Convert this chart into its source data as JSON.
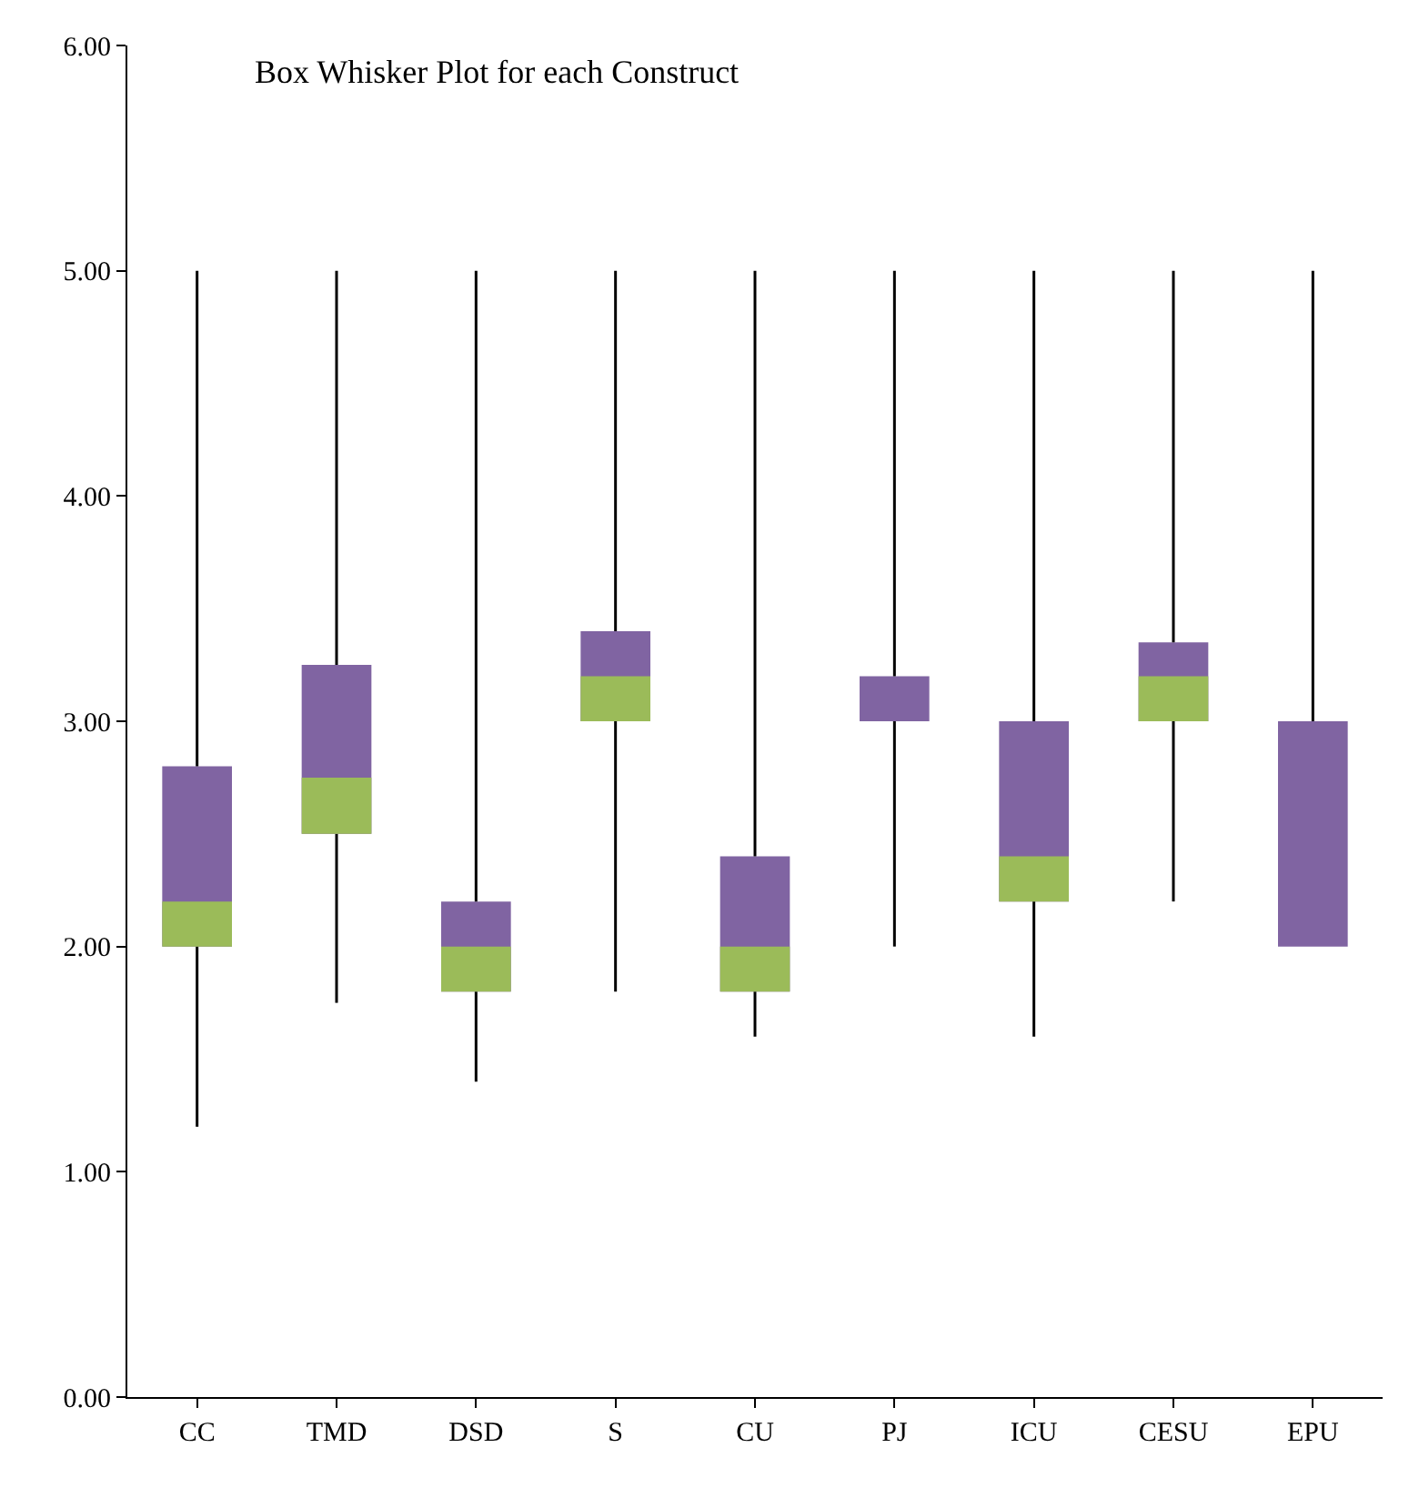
{
  "chart_data": {
    "type": "box",
    "title": "Box Whisker Plot for each Construct",
    "categories": [
      "CC",
      "TMD",
      "DSD",
      "S",
      "CU",
      "PJ",
      "ICU",
      "CESU",
      "EPU"
    ],
    "color": "#9bbb59",
    "series": [
      {
        "color": "#8064a2",
        "boxes": [
          {
            "low": 1.2,
            "q1": 2.0,
            "median": 2.2,
            "q3": 2.8,
            "high": 5.0
          },
          {
            "low": 1.75,
            "q1": 2.5,
            "median": 2.75,
            "q3": 3.25,
            "high": 5.0
          },
          {
            "low": 1.4,
            "q1": 1.8,
            "median": 2.0,
            "q3": 2.2,
            "high": 5.0
          },
          {
            "low": 1.8,
            "q1": 3.0,
            "median": 3.2,
            "q3": 3.4,
            "high": 5.0
          },
          {
            "low": 1.6,
            "q1": 1.8,
            "median": 2.0,
            "q3": 2.4,
            "high": 5.0
          },
          {
            "low": 2.0,
            "q1": 3.0,
            "median": 3.0,
            "q3": 3.2,
            "high": 5.0
          },
          {
            "low": 1.6,
            "q1": 2.2,
            "median": 2.4,
            "q3": 3.0,
            "high": 5.0
          },
          {
            "low": 2.2,
            "q1": 3.0,
            "median": 3.2,
            "q3": 3.35,
            "high": 5.0
          },
          {
            "low": 2.0,
            "q1": 2.0,
            "median": 2.0,
            "q3": 3.0,
            "high": 5.0
          }
        ]
      }
    ],
    "ylim": [
      0,
      6
    ],
    "yticks": [
      {
        "value": 0,
        "label": "0.00"
      },
      {
        "value": 1,
        "label": "1.00"
      },
      {
        "value": 2,
        "label": "2.00"
      },
      {
        "value": 3,
        "label": "3.00"
      },
      {
        "value": 4,
        "label": "4.00"
      },
      {
        "value": 5,
        "label": "5.00"
      },
      {
        "value": 6,
        "label": "6.00"
      }
    ]
  }
}
